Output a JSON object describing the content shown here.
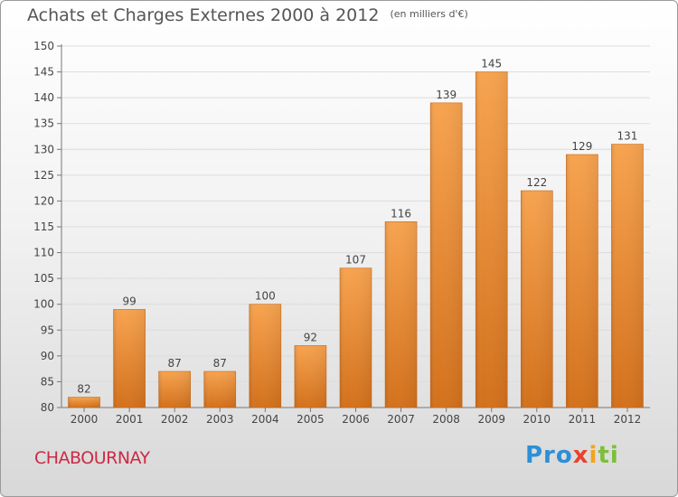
{
  "chart_data": {
    "type": "bar",
    "title": "Achats et Charges Externes 2000 à 2012",
    "unit_note": "(en milliers d'€)",
    "categories": [
      "2000",
      "2001",
      "2002",
      "2003",
      "2004",
      "2005",
      "2006",
      "2007",
      "2008",
      "2009",
      "2010",
      "2011",
      "2012"
    ],
    "values": [
      82,
      99,
      87,
      87,
      100,
      92,
      107,
      116,
      139,
      145,
      122,
      129,
      131
    ],
    "ylim": [
      80,
      150
    ],
    "yticks": [
      80,
      85,
      90,
      95,
      100,
      105,
      110,
      115,
      120,
      125,
      130,
      135,
      140,
      145,
      150
    ],
    "bar_color": "#f0913a",
    "grid": true,
    "legend": "none"
  },
  "footer": {
    "city": "CHABOURNAY",
    "logo_parts": [
      "Pro",
      "x",
      "i",
      "ti"
    ]
  },
  "colors": {
    "city": "#cc2a45",
    "bar_top": "#f7a04e",
    "bar_bottom": "#d4731f"
  }
}
